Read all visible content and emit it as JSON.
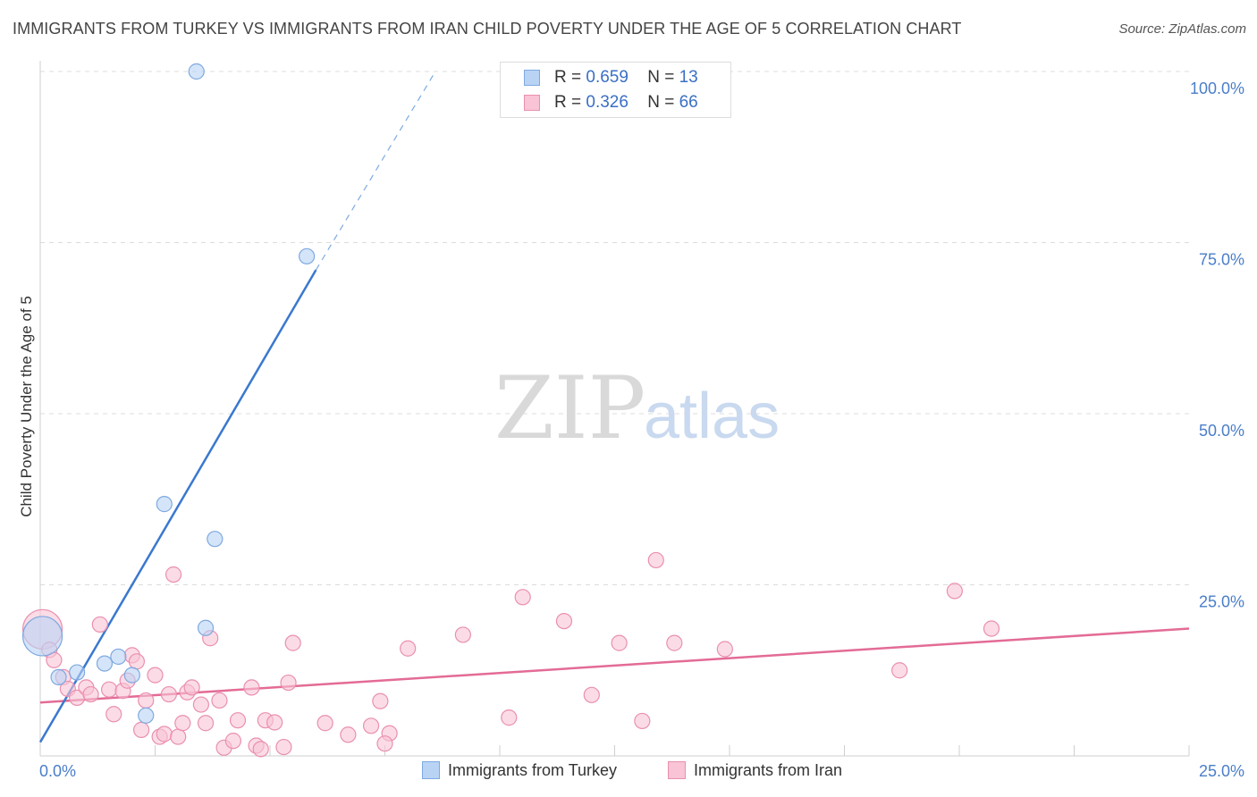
{
  "title": "IMMIGRANTS FROM TURKEY VS IMMIGRANTS FROM IRAN CHILD POVERTY UNDER THE AGE OF 5 CORRELATION CHART",
  "source": "Source: ZipAtlas.com",
  "watermark": {
    "zip": "ZIP",
    "atlas": "atlas"
  },
  "legend": {
    "rows": [
      {
        "r_label": "R = ",
        "r_value": "0.659",
        "n_label": "N = ",
        "n_value": "13"
      },
      {
        "r_label": "R = ",
        "r_value": "0.326",
        "n_label": "N = ",
        "n_value": "66"
      }
    ]
  },
  "colors": {
    "turkey_fill": "#b9d3f5",
    "turkey_stroke": "#7ea9e0",
    "turkey_line": "#3a78d0",
    "iran_fill": "#f8c4d6",
    "iran_stroke": "#ea8fb0",
    "iran_line": "#e36b96",
    "tick_label": "#4a7ec9",
    "grid": "#dcdcdc"
  },
  "chart_data": {
    "type": "scatter",
    "ylabel": "Child Poverty Under the Age of 5",
    "xlim": [
      0,
      25
    ],
    "ylim": [
      0,
      100
    ],
    "x_ticks": [
      {
        "value": 0,
        "label": "0.0%"
      },
      {
        "value": 25,
        "label": "25.0%"
      }
    ],
    "y_ticks": [
      {
        "value": 25,
        "label": "25.0%"
      },
      {
        "value": 50,
        "label": "50.0%"
      },
      {
        "value": 75,
        "label": "75.0%"
      },
      {
        "value": 100,
        "label": "100.0%"
      }
    ],
    "grid": true,
    "series": [
      {
        "name": "Immigrants from Turkey",
        "points": [
          {
            "x": 0.05,
            "y": 17.5,
            "big": true
          },
          {
            "x": 0.4,
            "y": 11.5
          },
          {
            "x": 0.8,
            "y": 12.2
          },
          {
            "x": 1.4,
            "y": 13.5
          },
          {
            "x": 1.7,
            "y": 14.5
          },
          {
            "x": 2.0,
            "y": 11.8
          },
          {
            "x": 2.3,
            "y": 5.9
          },
          {
            "x": 2.7,
            "y": 36.8
          },
          {
            "x": 3.4,
            "y": 100.0
          },
          {
            "x": 3.6,
            "y": 18.7
          },
          {
            "x": 3.8,
            "y": 31.7
          },
          {
            "x": 5.8,
            "y": 73.0
          }
        ],
        "trend": {
          "x0": 0,
          "y0": 2.0,
          "x1": 6.0,
          "y1": 71.0,
          "dash_to_x": 8.6,
          "dash_to_y": 100.0
        }
      },
      {
        "name": "Immigrants from Iran",
        "points": [
          {
            "x": 0.05,
            "y": 18.5,
            "big": true
          },
          {
            "x": 0.2,
            "y": 15.5
          },
          {
            "x": 0.3,
            "y": 14.0
          },
          {
            "x": 0.5,
            "y": 11.5
          },
          {
            "x": 0.6,
            "y": 9.8
          },
          {
            "x": 0.8,
            "y": 8.5
          },
          {
            "x": 1.0,
            "y": 10.0
          },
          {
            "x": 1.1,
            "y": 9.0
          },
          {
            "x": 1.3,
            "y": 19.2
          },
          {
            "x": 1.5,
            "y": 9.7
          },
          {
            "x": 1.6,
            "y": 6.1
          },
          {
            "x": 1.8,
            "y": 9.5
          },
          {
            "x": 1.9,
            "y": 11.0
          },
          {
            "x": 2.0,
            "y": 14.7
          },
          {
            "x": 2.1,
            "y": 13.8
          },
          {
            "x": 2.2,
            "y": 3.8
          },
          {
            "x": 2.3,
            "y": 8.1
          },
          {
            "x": 2.5,
            "y": 11.8
          },
          {
            "x": 2.6,
            "y": 2.8
          },
          {
            "x": 2.7,
            "y": 3.2
          },
          {
            "x": 2.8,
            "y": 9.0
          },
          {
            "x": 2.9,
            "y": 26.5
          },
          {
            "x": 3.0,
            "y": 2.8
          },
          {
            "x": 3.1,
            "y": 4.8
          },
          {
            "x": 3.2,
            "y": 9.3
          },
          {
            "x": 3.3,
            "y": 10.0
          },
          {
            "x": 3.5,
            "y": 7.5
          },
          {
            "x": 3.6,
            "y": 4.8
          },
          {
            "x": 3.7,
            "y": 17.2
          },
          {
            "x": 3.9,
            "y": 8.1
          },
          {
            "x": 4.0,
            "y": 1.2
          },
          {
            "x": 4.2,
            "y": 2.2
          },
          {
            "x": 4.3,
            "y": 5.2
          },
          {
            "x": 4.6,
            "y": 10.0
          },
          {
            "x": 4.7,
            "y": 1.5
          },
          {
            "x": 4.8,
            "y": 1.0
          },
          {
            "x": 4.9,
            "y": 5.2
          },
          {
            "x": 5.1,
            "y": 4.9
          },
          {
            "x": 5.3,
            "y": 1.3
          },
          {
            "x": 5.4,
            "y": 10.7
          },
          {
            "x": 5.5,
            "y": 16.5
          },
          {
            "x": 6.2,
            "y": 4.8
          },
          {
            "x": 6.7,
            "y": 3.1
          },
          {
            "x": 7.2,
            "y": 4.4
          },
          {
            "x": 7.4,
            "y": 8.0
          },
          {
            "x": 7.6,
            "y": 3.3
          },
          {
            "x": 7.5,
            "y": 1.8
          },
          {
            "x": 8.0,
            "y": 15.7
          },
          {
            "x": 9.2,
            "y": 17.7
          },
          {
            "x": 10.2,
            "y": 5.6
          },
          {
            "x": 10.5,
            "y": 23.2
          },
          {
            "x": 11.4,
            "y": 19.7
          },
          {
            "x": 12.0,
            "y": 8.9
          },
          {
            "x": 12.6,
            "y": 16.5
          },
          {
            "x": 13.1,
            "y": 5.1
          },
          {
            "x": 13.4,
            "y": 28.6
          },
          {
            "x": 13.8,
            "y": 16.5
          },
          {
            "x": 14.9,
            "y": 15.6
          },
          {
            "x": 18.7,
            "y": 12.5
          },
          {
            "x": 19.9,
            "y": 24.1
          },
          {
            "x": 20.7,
            "y": 18.6
          }
        ],
        "trend": {
          "x0": 0,
          "y0": 7.8,
          "x1": 25.0,
          "y1": 18.6
        }
      }
    ]
  }
}
